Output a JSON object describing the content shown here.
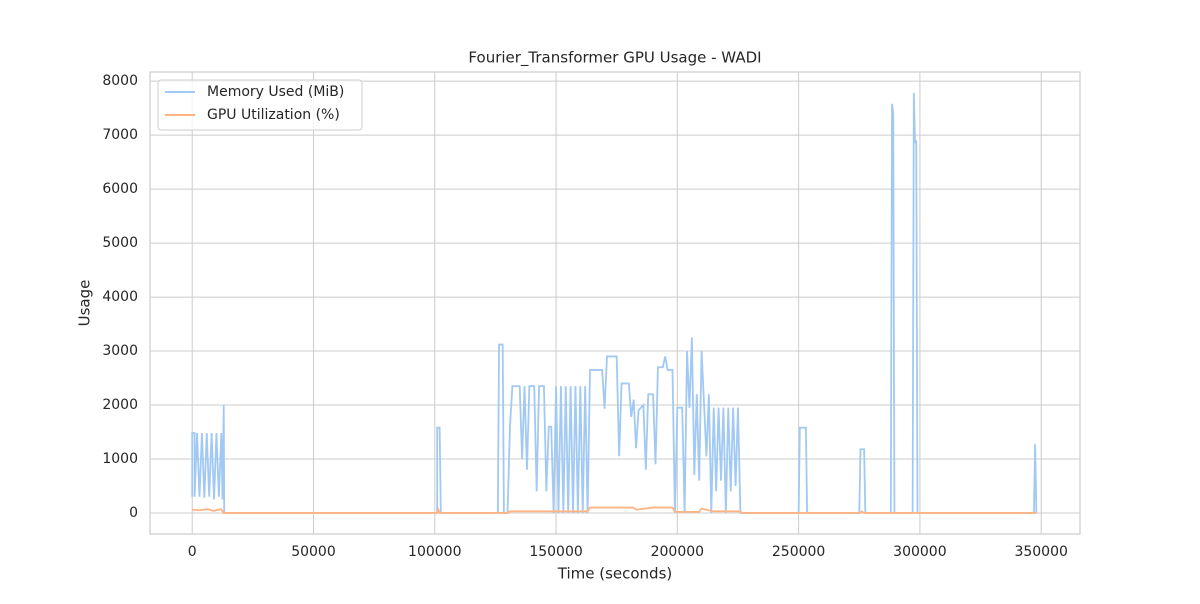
{
  "chart_data": {
    "type": "line",
    "title": "Fourier_Transformer GPU Usage - WADI",
    "x_label": "Time (seconds)",
    "y_label": "Usage",
    "xlim": [
      -17400,
      366000
    ],
    "ylim": [
      -390,
      8170
    ],
    "xticks": [
      0,
      50000,
      100000,
      150000,
      200000,
      250000,
      300000,
      350000
    ],
    "yticks": [
      0,
      1000,
      2000,
      3000,
      4000,
      5000,
      6000,
      7000,
      8000
    ],
    "grid": true,
    "legend": "upper left",
    "series": [
      {
        "name": "Memory Used (MiB)",
        "color": "#a1c9f4",
        "x": [
          0,
          0,
          1000,
          1000,
          2000,
          3000,
          4000,
          5000,
          6000,
          7000,
          8000,
          9000,
          10000,
          11000,
          12000,
          12500,
          13000,
          13200,
          101000,
          101000,
          102000,
          102500,
          126000,
          126500,
          128000,
          128500,
          130000,
          131000,
          132000,
          135000,
          136000,
          137000,
          138000,
          139000,
          141000,
          142000,
          143000,
          145000,
          146000,
          147000,
          148000,
          149000,
          150000,
          151000,
          152000,
          153000,
          154000,
          155000,
          156000,
          157000,
          158000,
          159000,
          160000,
          161000,
          162000,
          163000,
          164000,
          169000,
          170000,
          171000,
          175000,
          176000,
          177000,
          180000,
          181000,
          182000,
          183000,
          184000,
          186000,
          187000,
          188000,
          190000,
          191000,
          192000,
          194000,
          195000,
          196000,
          198000,
          199000,
          200000,
          202000,
          203000,
          204000,
          205000,
          206000,
          207000,
          208000,
          209000,
          210000,
          212000,
          213000,
          214000,
          215000,
          216000,
          217000,
          218000,
          219000,
          220000,
          221000,
          222000,
          223000,
          224000,
          225000,
          226000,
          250000,
          250500,
          253000,
          253500,
          275000,
          275500,
          277000,
          277500,
          288000,
          288500,
          289000,
          289500,
          297000,
          297500,
          298000,
          298500,
          299000,
          347000,
          347500,
          348000
        ],
        "values": [
          300,
          1480,
          1480,
          300,
          1480,
          300,
          1480,
          280,
          1480,
          300,
          1480,
          250,
          1480,
          300,
          1480,
          250,
          2000,
          0,
          0,
          1580,
          1580,
          0,
          0,
          3120,
          3120,
          0,
          0,
          1600,
          2350,
          2350,
          1000,
          2350,
          800,
          2350,
          2350,
          400,
          2350,
          2350,
          400,
          1600,
          1600,
          0,
          2350,
          0,
          2350,
          0,
          2350,
          0,
          2350,
          0,
          2350,
          0,
          2350,
          0,
          2350,
          0,
          2650,
          2650,
          1930,
          2900,
          2900,
          1050,
          2400,
          2400,
          1780,
          2100,
          1200,
          1900,
          2000,
          800,
          2200,
          2200,
          900,
          2700,
          2700,
          2900,
          2650,
          2650,
          0,
          1950,
          1950,
          0,
          3000,
          1950,
          3250,
          700,
          2200,
          600,
          3000,
          1050,
          2200,
          0,
          1950,
          400,
          1950,
          600,
          1950,
          0,
          1950,
          400,
          1950,
          500,
          1950,
          0,
          0,
          1580,
          1580,
          0,
          0,
          1180,
          1180,
          0,
          0,
          7580,
          7400,
          0,
          0,
          7780,
          6850,
          6900,
          0,
          0,
          1280,
          0
        ]
      },
      {
        "name": "GPU Utilization (%)",
        "color": "#ffb482",
        "x": [
          0,
          3000,
          6000,
          9000,
          12000,
          13000,
          101000,
          101500,
          102000,
          130000,
          131000,
          163000,
          164000,
          182000,
          183000,
          190000,
          198000,
          199000,
          209000,
          210000,
          215000,
          226000,
          226500,
          275500,
          276000,
          277000,
          348000
        ],
        "values": [
          60,
          50,
          70,
          40,
          70,
          0,
          0,
          60,
          0,
          0,
          30,
          30,
          100,
          100,
          60,
          100,
          100,
          20,
          20,
          80,
          30,
          30,
          0,
          0,
          30,
          0,
          0
        ]
      }
    ]
  }
}
